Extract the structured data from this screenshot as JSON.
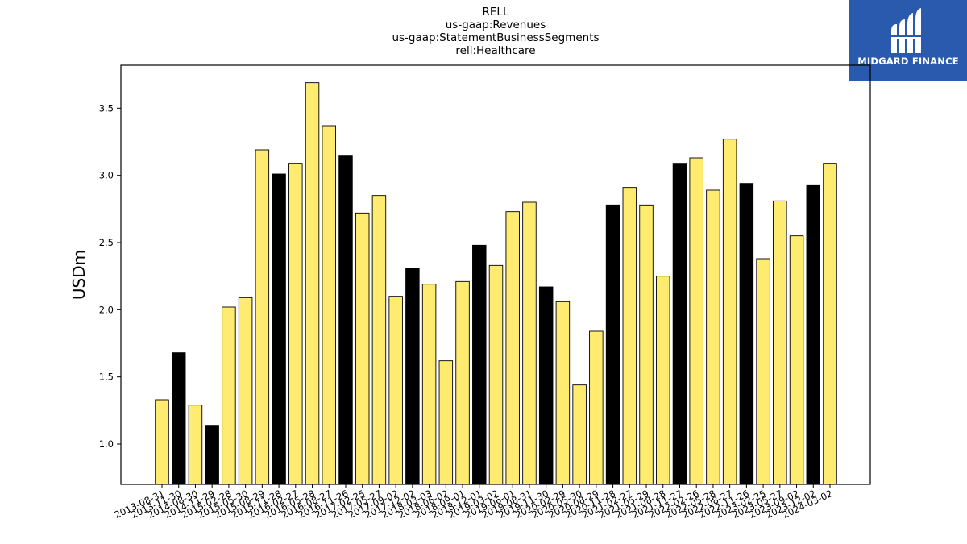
{
  "chart_data": {
    "type": "bar",
    "title_lines": [
      "RELL",
      "us-gaap:Revenues",
      "us-gaap:StatementBusinessSegments",
      "rell:Healthcare"
    ],
    "xlabel": "",
    "ylabel": "USDm",
    "ylim": [
      0.7,
      3.82
    ],
    "yticks": [
      1.0,
      1.5,
      2.0,
      2.5,
      3.0,
      3.5
    ],
    "ytick_labels": [
      "1.0",
      "1.5",
      "2.0",
      "2.5",
      "3.0",
      "3.5"
    ],
    "grid": false,
    "colors": {
      "quarter": "#ffeb70",
      "year_end": "#000000",
      "edge": "#000000"
    },
    "categories": [
      "2013-08-31",
      "2013-11-30",
      "2014-08-30",
      "2014-11-29",
      "2015-02-28",
      "2015-05-30",
      "2015-08-29",
      "2015-11-28",
      "2016-02-27",
      "2016-05-28",
      "2016-08-27",
      "2016-11-26",
      "2017-02-25",
      "2017-05-27",
      "2017-09-02",
      "2017-12-02",
      "2018-03-03",
      "2018-06-02",
      "2018-09-01",
      "2018-12-01",
      "2019-03-02",
      "2019-06-01",
      "2019-08-31",
      "2019-11-30",
      "2020-02-29",
      "2020-05-30",
      "2020-08-29",
      "2020-11-28",
      "2021-02-27",
      "2021-05-29",
      "2021-08-28",
      "2021-11-27",
      "2022-02-26",
      "2022-05-28",
      "2022-08-27",
      "2022-11-26",
      "2023-02-25",
      "2023-05-27",
      "2023-09-02",
      "2023-12-02",
      "2024-03-02"
    ],
    "values": [
      1.33,
      1.68,
      1.29,
      1.14,
      2.02,
      2.09,
      3.19,
      3.01,
      3.09,
      3.69,
      3.37,
      3.15,
      2.72,
      2.85,
      2.1,
      2.31,
      2.19,
      1.62,
      2.21,
      2.48,
      2.33,
      2.73,
      2.8,
      2.17,
      2.06,
      1.44,
      1.84,
      2.78,
      2.91,
      2.78,
      2.25,
      3.09,
      3.13,
      2.89,
      3.27,
      2.94,
      2.38,
      2.81,
      2.55,
      2.93,
      3.09
    ],
    "highlight": [
      false,
      true,
      false,
      true,
      false,
      false,
      false,
      true,
      false,
      false,
      false,
      true,
      false,
      false,
      false,
      true,
      false,
      false,
      false,
      true,
      false,
      false,
      false,
      true,
      false,
      false,
      false,
      true,
      false,
      false,
      false,
      true,
      false,
      false,
      false,
      true,
      false,
      false,
      false,
      true,
      false
    ]
  },
  "logo": {
    "text": "MIDGARD FINANCE",
    "icon": "midgard-logo-icon"
  }
}
